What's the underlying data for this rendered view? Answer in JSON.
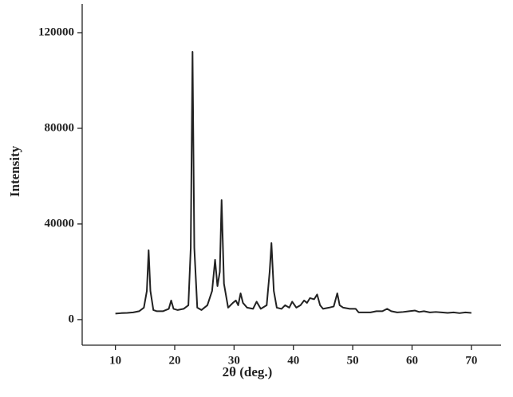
{
  "chart_data": {
    "type": "line",
    "x_label": "2θ (deg.)",
    "y_label": "Intensity",
    "x": [
      10,
      11,
      12,
      13,
      14,
      14.8,
      15.3,
      15.6,
      15.9,
      16.4,
      17,
      18,
      19,
      19.4,
      19.8,
      20.5,
      21.5,
      22.3,
      22.7,
      23.0,
      23.3,
      23.8,
      24.5,
      25.5,
      26.3,
      26.8,
      27.2,
      27.6,
      27.9,
      28.3,
      29,
      29.8,
      30.3,
      30.7,
      31.1,
      31.5,
      32.2,
      33.2,
      33.8,
      34.5,
      35.5,
      36.0,
      36.3,
      36.7,
      37.2,
      38,
      38.6,
      39.3,
      39.8,
      40.5,
      41.2,
      41.8,
      42.3,
      42.8,
      43.5,
      44,
      44.5,
      45,
      46,
      46.8,
      47.4,
      47.8,
      48.4,
      49.5,
      50.5,
      51,
      52,
      53,
      54,
      55,
      55.8,
      56.5,
      57.5,
      58.5,
      59.5,
      60.5,
      61.2,
      62,
      63,
      64,
      65,
      66,
      67,
      68,
      69,
      70
    ],
    "values": [
      2500,
      2700,
      2800,
      3000,
      3500,
      5000,
      12000,
      29000,
      12000,
      4000,
      3500,
      3500,
      4500,
      8000,
      4500,
      4000,
      4500,
      6000,
      30000,
      112000,
      30000,
      5000,
      4000,
      6000,
      12000,
      25000,
      14000,
      20000,
      50000,
      15000,
      5000,
      7000,
      8000,
      6000,
      11000,
      7000,
      5000,
      4500,
      7500,
      4500,
      6000,
      20000,
      32000,
      12000,
      5000,
      4500,
      6000,
      5000,
      7500,
      5000,
      6000,
      8000,
      7000,
      9000,
      8500,
      10500,
      6000,
      4500,
      5000,
      5500,
      11000,
      6000,
      5000,
      4500,
      4500,
      3000,
      3000,
      3000,
      3500,
      3500,
      4500,
      3500,
      3000,
      3200,
      3500,
      3800,
      3200,
      3500,
      3000,
      3200,
      3000,
      2800,
      3000,
      2700,
      3000,
      2800
    ],
    "color": "#222222",
    "xlim": [
      4.4,
      75
    ],
    "xticks": [
      10,
      20,
      30,
      40,
      50,
      60,
      70
    ],
    "ylim": [
      -10700,
      132000
    ],
    "yticks": [
      0,
      40000,
      80000,
      120000
    ]
  }
}
